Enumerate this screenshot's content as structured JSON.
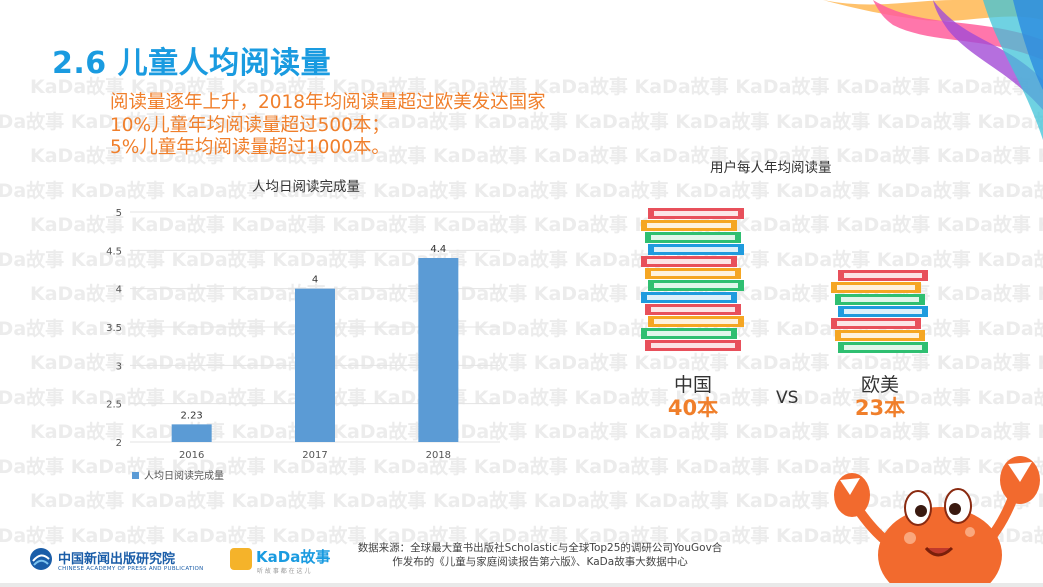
{
  "slide": {
    "title": "2.6 儿童人均阅读量",
    "subtitle_lines": [
      "阅读量逐年上升，2018年均阅读量超过欧美发达国家",
      "10%儿童年均阅读量超过500本；",
      "5%儿童年均阅读量超过1000本。"
    ],
    "watermark_text": "KaDa故事"
  },
  "chart_data": [
    {
      "type": "bar",
      "title": "人均日阅读完成量",
      "categories": [
        "2016",
        "2017",
        "2018"
      ],
      "series": [
        {
          "name": "人均日阅读完成量",
          "values": [
            2.23,
            4,
            4.4
          ],
          "color": "#5b9bd5"
        }
      ],
      "data_labels": [
        "2.23",
        "4",
        "4.4"
      ],
      "y_ticks": [
        "2",
        "2.5",
        "3",
        "3.5",
        "4",
        "4.5",
        "5"
      ],
      "ylim": [
        2,
        5
      ],
      "grid": true,
      "legend": "bottom-left"
    },
    {
      "type": "bar",
      "title": "用户每人年均阅读量",
      "categories": [
        "中国",
        "欧美"
      ],
      "values_text": [
        "40本",
        "23本"
      ],
      "values": [
        40,
        23
      ],
      "units": "本",
      "versus_label": "VS"
    }
  ],
  "footer": {
    "source_line1": "数据来源：全球最大童书出版社Scholastic与全球Top25的调研公司YouGov合",
    "source_line2": "作发布的《儿童与家庭阅读报告第六版》、KaDa故事大数据中心",
    "org_logo_text": "中国新闻出版研究院",
    "org_logo_sub": "CHINESE ACADEMY OF PRESS AND PUBLICATION",
    "brand_logo_text": "KaDa故事",
    "brand_logo_sub": "听 故 事 都 在 这 儿"
  },
  "colors": {
    "title_blue": "#1a9be0",
    "accent_orange": "#f07f2b",
    "bar_blue": "#5b9bd5"
  }
}
